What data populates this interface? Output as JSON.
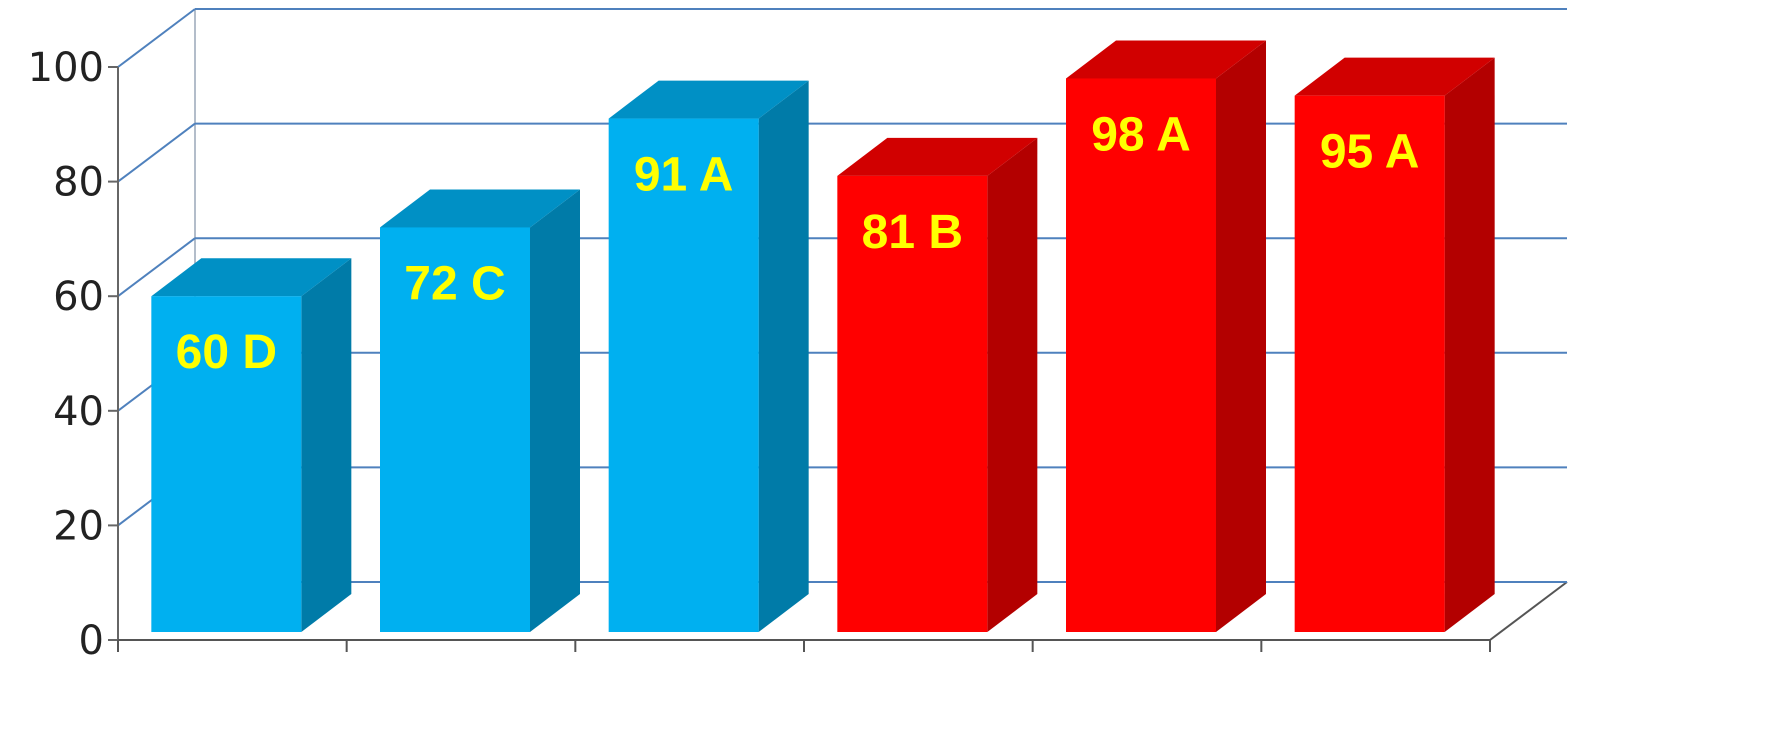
{
  "chart_data": {
    "type": "bar",
    "style": "3d-column",
    "categories": [
      "",
      "",
      "",
      "",
      "",
      ""
    ],
    "values": [
      60,
      72,
      91,
      81,
      98,
      95
    ],
    "data_labels": [
      "60 D",
      "72 C",
      "91 A",
      "81 B",
      "98 A",
      "95 A"
    ],
    "bar_colors": [
      "#00B0F0",
      "#00B0F0",
      "#00B0F0",
      "#FF0000",
      "#FF0000",
      "#FF0000"
    ],
    "label_color": "#FFFF00",
    "gridline_color": "#4F81BD",
    "ylim": [
      0,
      100
    ],
    "yticks": [
      0,
      20,
      40,
      60,
      80,
      100
    ],
    "grid": true,
    "legend": false,
    "title": "",
    "xlabel": "",
    "ylabel": ""
  }
}
